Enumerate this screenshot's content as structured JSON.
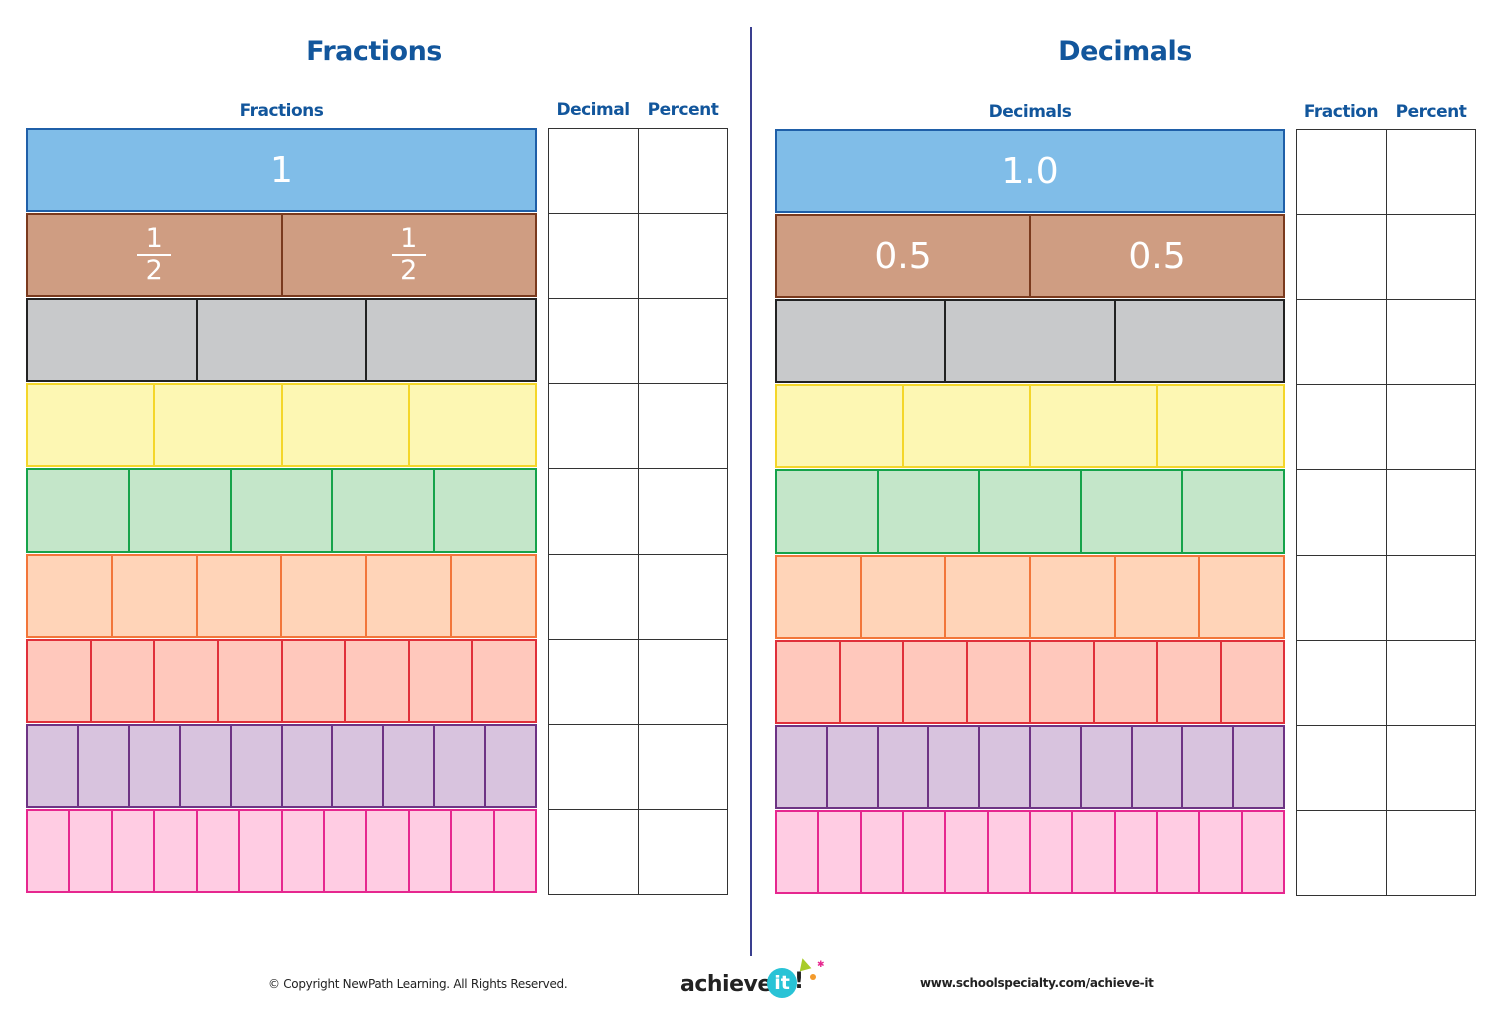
{
  "left": {
    "title": "Fractions",
    "col_main": "Fractions",
    "col_a": "Decimal",
    "col_b": "Percent",
    "rows": [
      {
        "parts": 1,
        "labels": [
          "1"
        ]
      },
      {
        "parts": 2,
        "fraction_labels": [
          {
            "num": "1",
            "den": "2"
          },
          {
            "num": "1",
            "den": "2"
          }
        ]
      },
      {
        "parts": 3
      },
      {
        "parts": 4
      },
      {
        "parts": 5
      },
      {
        "parts": 6
      },
      {
        "parts": 8
      },
      {
        "parts": 10
      },
      {
        "parts": 12
      }
    ]
  },
  "right": {
    "title": "Decimals",
    "col_main": "Decimals",
    "col_a": "Fraction",
    "col_b": "Percent",
    "rows": [
      {
        "parts": 1,
        "labels": [
          "1.0"
        ]
      },
      {
        "parts": 2,
        "labels": [
          "0.5",
          "0.5"
        ]
      },
      {
        "parts": 3
      },
      {
        "parts": 4
      },
      {
        "parts": 5
      },
      {
        "parts": 6
      },
      {
        "parts": 8
      },
      {
        "parts": 10
      },
      {
        "parts": 12
      }
    ]
  },
  "row_colors": [
    {
      "fill": "#80bde8",
      "stroke": "#1f5fa8"
    },
    {
      "fill": "#cf9d82",
      "stroke": "#7a3a1e"
    },
    {
      "fill": "#c8c9cb",
      "stroke": "#222222"
    },
    {
      "fill": "#fdf7b3",
      "stroke": "#f4d62a"
    },
    {
      "fill": "#c4e6c9",
      "stroke": "#16a34a"
    },
    {
      "fill": "#ffd4b8",
      "stroke": "#f2763a"
    },
    {
      "fill": "#ffc8bc",
      "stroke": "#e0303a"
    },
    {
      "fill": "#d8c3de",
      "stroke": "#6e3384"
    },
    {
      "fill": "#ffcce3",
      "stroke": "#e6278f"
    }
  ],
  "footer": {
    "copyright": "© Copyright NewPath Learning. All Rights Reserved.",
    "logo_text": "achieve",
    "logo_badge": "it",
    "logo_bang": "!",
    "url": "www.schoolspecialty.com/achieve-it"
  }
}
